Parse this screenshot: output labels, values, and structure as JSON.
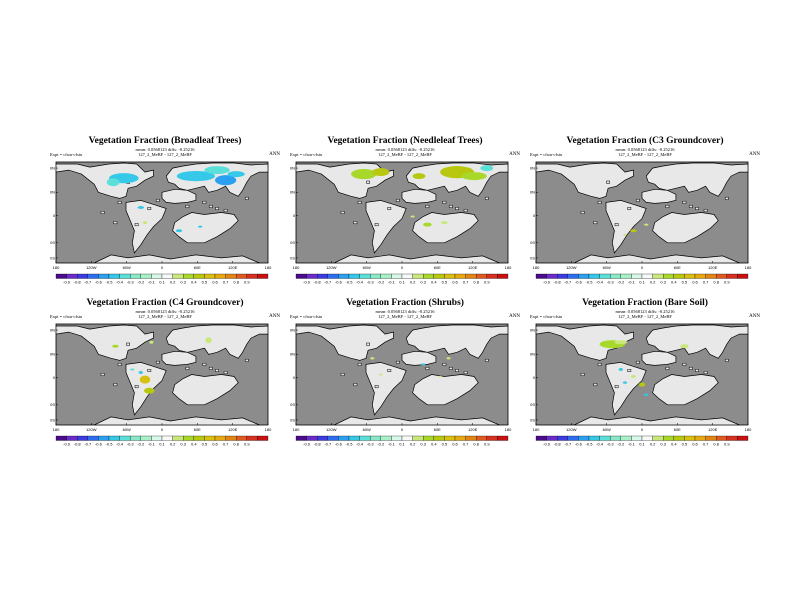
{
  "colors": {
    "ocean": "#8c8c8c",
    "land": "#e8e8e8",
    "coast": "#000000",
    "scale": [
      "#4b0c8c",
      "#6a2cc8",
      "#3b3be0",
      "#2f6cf0",
      "#2ca0f0",
      "#36c8e8",
      "#5ae0d8",
      "#88e8c8",
      "#a8f0c8",
      "#d8f8e8",
      "#f8f8f8",
      "#c8e87a",
      "#a8d82a",
      "#b8c810",
      "#d8c010",
      "#e8a810",
      "#e08418",
      "#e05a20",
      "#d83020",
      "#c81010"
    ]
  },
  "map": {
    "lat_labels": [
      "60N",
      "40N",
      "0",
      "40S",
      "60S"
    ],
    "lon_labels": [
      "180",
      "120W",
      "60W",
      "0",
      "60E",
      "120E",
      "180"
    ]
  },
  "panels": [
    {
      "title": "Vegetation Fraction (Broadleaf Trees)",
      "stats": "mean: 0.0568123 diffs: -0.25216",
      "expt": "Expt = cfstu-cfstu",
      "case": "127_2_MeBF - 127_2_MeBF",
      "season": "ANN",
      "scale_labels": [
        "-0.9",
        "-0.8",
        "-0.7",
        "-0.6",
        "-0.5",
        "-0.4",
        "-0.3",
        "-0.2",
        "-0.1",
        "0.1",
        "0.2",
        "0.3",
        "0.4",
        "0.5",
        "0.6",
        "0.7",
        "0.8",
        "0.9"
      ]
    },
    {
      "title": "Vegetation Fraction (Needleleaf Trees)",
      "stats": "mean: 0.0568123 diffs: -0.25216",
      "expt": "Expt = cfstu-cfstu",
      "case": "127_2_MeBF - 127_2_MeBF",
      "season": "ANN",
      "scale_labels": [
        "-0.9",
        "-0.8",
        "-0.7",
        "-0.6",
        "-0.5",
        "-0.4",
        "-0.3",
        "-0.2",
        "-0.1",
        "0.1",
        "0.2",
        "0.3",
        "0.4",
        "0.5",
        "0.6",
        "0.7",
        "0.8",
        "0.9"
      ]
    },
    {
      "title": "Vegetation Fraction (C3 Groundcover)",
      "stats": "mean: 0.0568123 diffs: -0.25216",
      "expt": "Expt = cfstu-cfstu",
      "case": "127_2_MeBF - 127_2_MeBF",
      "season": "ANN",
      "scale_labels": [
        "-0.9",
        "-0.8",
        "-0.7",
        "-0.6",
        "-0.5",
        "-0.4",
        "-0.3",
        "-0.2",
        "-0.1",
        "0.1",
        "0.2",
        "0.3",
        "0.4",
        "0.5",
        "0.6",
        "0.7",
        "0.8",
        "0.9"
      ]
    },
    {
      "title": "Vegetation Fraction (C4 Groundcover)",
      "stats": "mean: 0.0568123 diffs: -0.25216",
      "expt": "Expt = cfstu-cfstu",
      "case": "127_2_MeBF - 127_2_MeBF",
      "season": "ANN",
      "scale_labels": [
        "-0.9",
        "-0.8",
        "-0.7",
        "-0.6",
        "-0.5",
        "-0.4",
        "-0.3",
        "-0.2",
        "-0.1",
        "0.1",
        "0.2",
        "0.3",
        "0.4",
        "0.5",
        "0.6",
        "0.7",
        "0.8",
        "0.9"
      ]
    },
    {
      "title": "Vegetation Fraction (Shrubs)",
      "stats": "mean: 0.0568123 diffs: -0.25216",
      "expt": "Expt = cfstu-cfstu",
      "case": "127_2_MeBF - 127_2_MeBF",
      "season": "ANN",
      "scale_labels": [
        "-0.9",
        "-0.8",
        "-0.7",
        "-0.6",
        "-0.5",
        "-0.4",
        "-0.3",
        "-0.2",
        "-0.1",
        "0.1",
        "0.2",
        "0.3",
        "0.4",
        "0.5",
        "0.6",
        "0.7",
        "0.8",
        "0.9"
      ]
    },
    {
      "title": "Vegetation Fraction (Bare Soil)",
      "stats": "mean: 0.0568123 diffs: -0.25216",
      "expt": "Expt = cfstu-cfstu",
      "case": "127_2_MeBF - 127_2_MeBF",
      "season": "ANN",
      "scale_labels": [
        "-0.9",
        "-0.8",
        "-0.7",
        "-0.6",
        "-0.5",
        "-0.4",
        "-0.3",
        "-0.2",
        "-0.1",
        "0.1",
        "0.2",
        "0.3",
        "0.4",
        "0.5",
        "0.6",
        "0.7",
        "0.8",
        "0.9"
      ]
    }
  ]
}
